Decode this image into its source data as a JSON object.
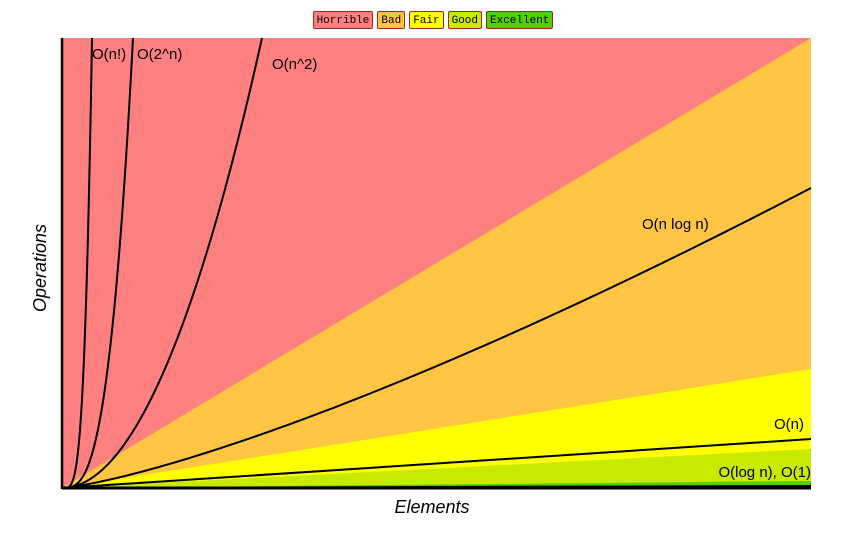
{
  "legend": [
    {
      "label": "Horrible",
      "color": "#ff8080"
    },
    {
      "label": "Bad",
      "color": "#ffc543"
    },
    {
      "label": "Fair",
      "color": "#ffff00"
    },
    {
      "label": "Good",
      "color": "#c8ea00"
    },
    {
      "label": "Excellent",
      "color": "#53d000"
    }
  ],
  "chart_data": {
    "type": "line",
    "xlabel": "Elements",
    "ylabel": "Operations",
    "grid": false,
    "legend_position": "top-center",
    "zones": [
      {
        "name": "Horrible",
        "color": "#ff8080"
      },
      {
        "name": "Bad",
        "color": "#ffc543"
      },
      {
        "name": "Fair",
        "color": "#ffff00"
      },
      {
        "name": "Good",
        "color": "#c8ea00"
      },
      {
        "name": "Excellent",
        "color": "#53d000"
      }
    ],
    "curves": [
      {
        "label": "O(n!)",
        "fn": "factorial"
      },
      {
        "label": "O(2^n)",
        "fn": "exponential"
      },
      {
        "label": "O(n^2)",
        "fn": "quadratic"
      },
      {
        "label": "O(n log n)",
        "fn": "nlogn"
      },
      {
        "label": "O(n)",
        "fn": "linear"
      },
      {
        "label": "O(log n), O(1)",
        "fn": "log_constant"
      }
    ]
  }
}
